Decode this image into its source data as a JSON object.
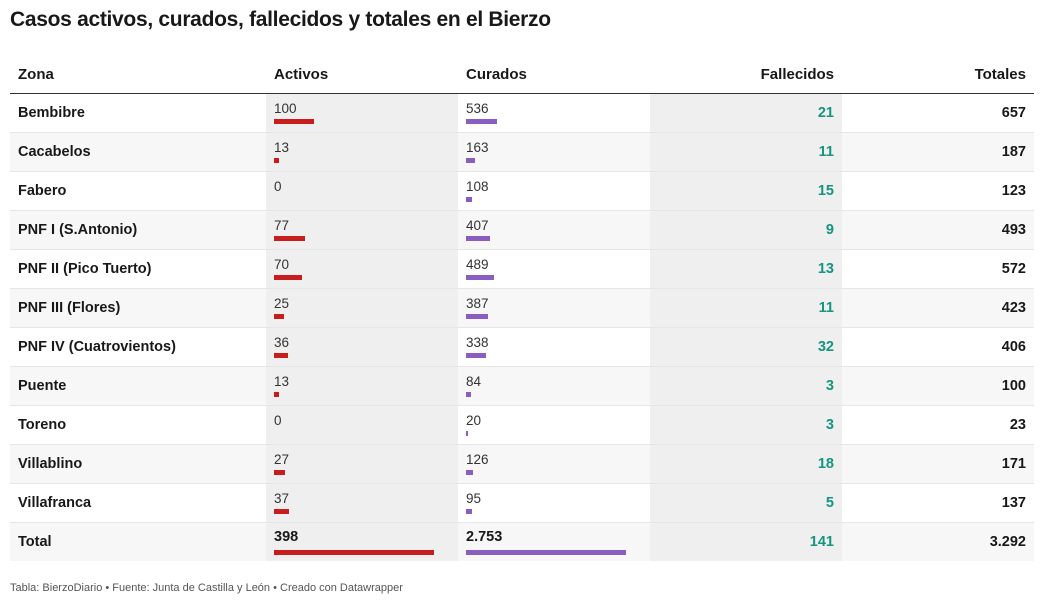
{
  "title": "Casos activos, curados, fallecidos y totales en el Bierzo",
  "footer": "Tabla: BierzoDiario • Fuente: Junta de Castilla y León • Creado con Datawrapper",
  "colors": {
    "activos_bar": "#c71e1d",
    "curados_bar": "#8a5dc1",
    "fallecidos_text": "#15947f"
  },
  "chart_data": {
    "type": "table",
    "columns": [
      "Zona",
      "Activos",
      "Curados",
      "Fallecidos",
      "Totales"
    ],
    "rows": [
      {
        "zona": "Bembibre",
        "activos": 100,
        "curados": 536,
        "fallecidos": 21,
        "totales": 657
      },
      {
        "zona": "Cacabelos",
        "activos": 13,
        "curados": 163,
        "fallecidos": 11,
        "totales": 187
      },
      {
        "zona": "Fabero",
        "activos": 0,
        "curados": 108,
        "fallecidos": 15,
        "totales": 123
      },
      {
        "zona": "PNF I (S.Antonio)",
        "activos": 77,
        "curados": 407,
        "fallecidos": 9,
        "totales": 493
      },
      {
        "zona": "PNF II (Pico Tuerto)",
        "activos": 70,
        "curados": 489,
        "fallecidos": 13,
        "totales": 572
      },
      {
        "zona": "PNF III (Flores)",
        "activos": 25,
        "curados": 387,
        "fallecidos": 11,
        "totales": 423
      },
      {
        "zona": "PNF IV (Cuatrovientos)",
        "activos": 36,
        "curados": 338,
        "fallecidos": 32,
        "totales": 406
      },
      {
        "zona": "Puente",
        "activos": 13,
        "curados": 84,
        "fallecidos": 3,
        "totales": 100
      },
      {
        "zona": "Toreno",
        "activos": 0,
        "curados": 20,
        "fallecidos": 3,
        "totales": 23
      },
      {
        "zona": "Villablino",
        "activos": 27,
        "curados": 126,
        "fallecidos": 18,
        "totales": 171
      },
      {
        "zona": "Villafranca",
        "activos": 37,
        "curados": 95,
        "fallecidos": 5,
        "totales": 137
      }
    ],
    "total": {
      "zona": "Total",
      "activos": 398,
      "curados": 2753,
      "fallecidos": 141,
      "totales": 3292,
      "activos_label": "398",
      "curados_label": "2.753",
      "fallecidos_label": "141",
      "totales_label": "3.292"
    }
  }
}
